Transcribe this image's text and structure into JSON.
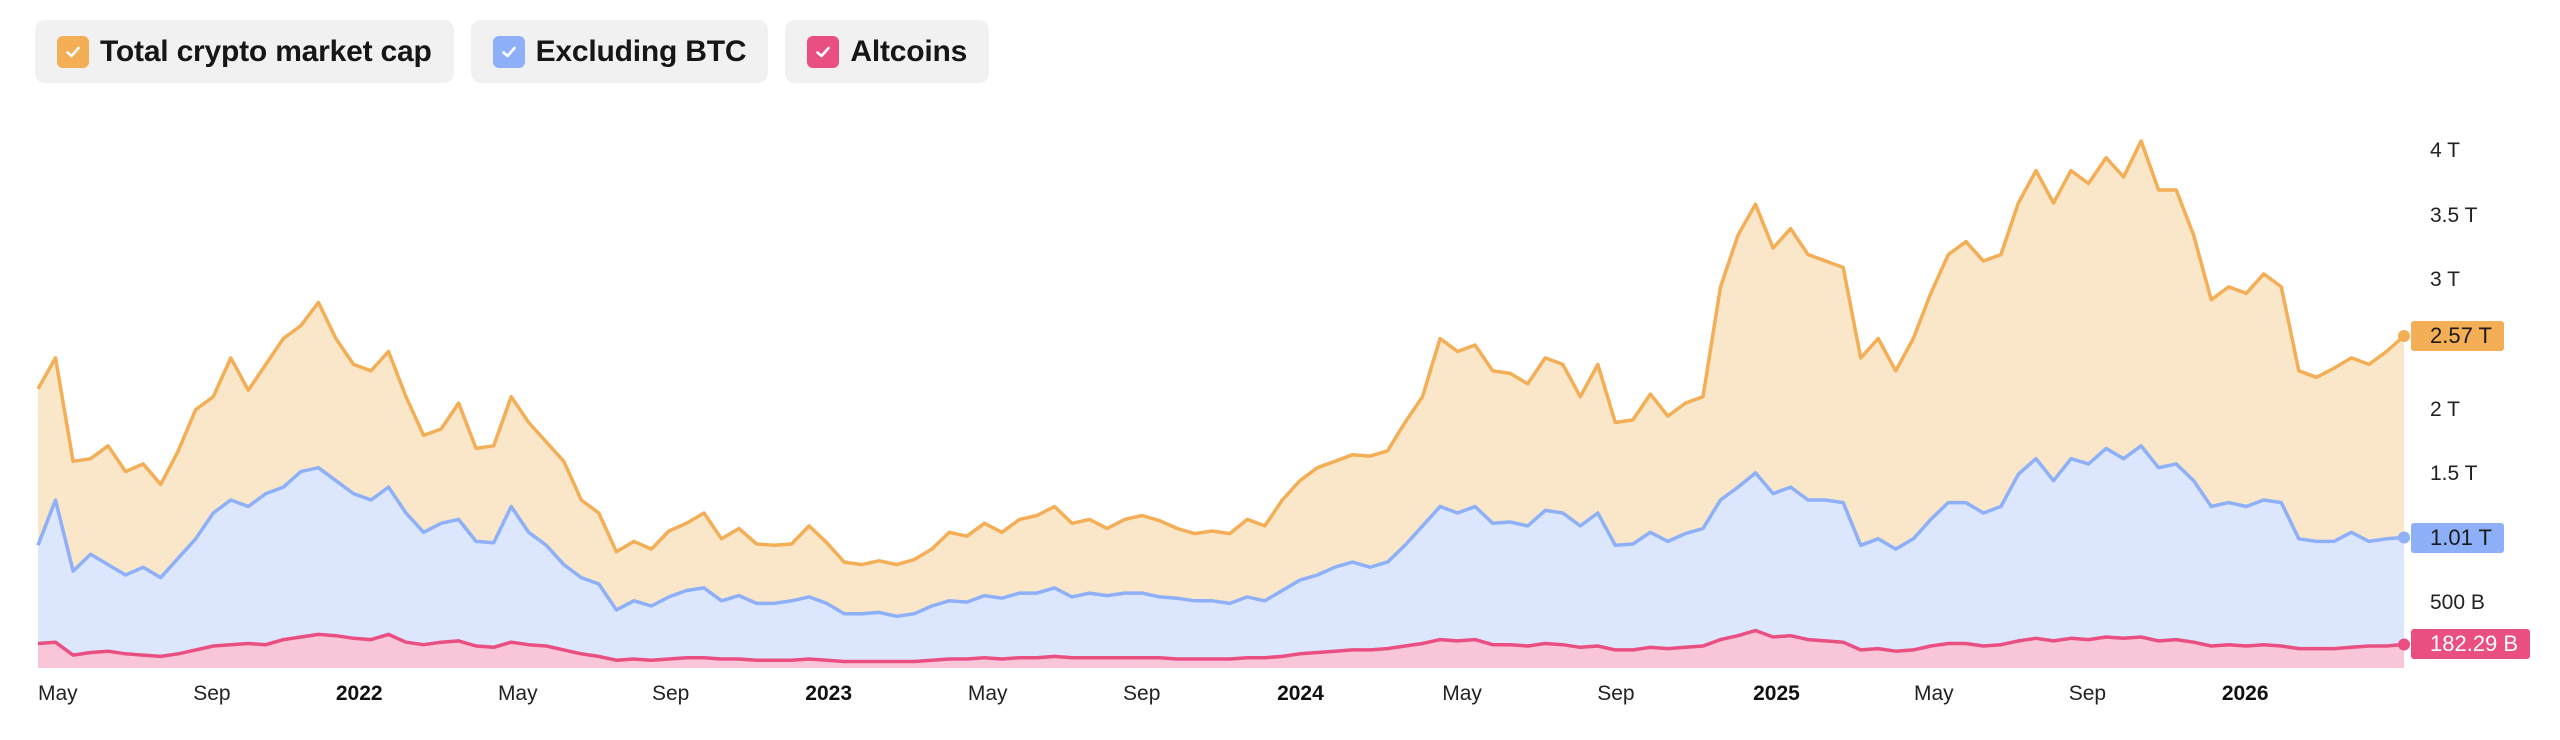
{
  "legend": [
    {
      "label": "Total crypto market cap",
      "color": "#f3ae56",
      "checked": true,
      "icon": "check-icon"
    },
    {
      "label": "Excluding BTC",
      "color": "#8db0f8",
      "checked": true,
      "icon": "check-icon"
    },
    {
      "label": "Altcoins",
      "color": "#ea4f82",
      "checked": true,
      "icon": "check-icon"
    }
  ],
  "y_axis": {
    "ticks": [
      {
        "label": "4 T",
        "value": 4.0
      },
      {
        "label": "3.5 T",
        "value": 3.5
      },
      {
        "label": "3 T",
        "value": 3.0
      },
      {
        "label": "2 T",
        "value": 2.0
      },
      {
        "label": "1.5 T",
        "value": 1.5
      },
      {
        "label": "500 B",
        "value": 0.5
      }
    ]
  },
  "x_axis": {
    "ticks": [
      {
        "label": "May",
        "pos": 0.0,
        "bold": false
      },
      {
        "label": "Sep",
        "pos": 0.0656,
        "bold": false
      },
      {
        "label": "2022",
        "pos": 0.1259,
        "bold": true
      },
      {
        "label": "May",
        "pos": 0.1944,
        "bold": false
      },
      {
        "label": "Sep",
        "pos": 0.2595,
        "bold": false
      },
      {
        "label": "2023",
        "pos": 0.3243,
        "bold": true
      },
      {
        "label": "May",
        "pos": 0.393,
        "bold": false
      },
      {
        "label": "Sep",
        "pos": 0.4586,
        "bold": false
      },
      {
        "label": "2024",
        "pos": 0.5237,
        "bold": true
      },
      {
        "label": "May",
        "pos": 0.5935,
        "bold": false
      },
      {
        "label": "Sep",
        "pos": 0.659,
        "bold": false
      },
      {
        "label": "2025",
        "pos": 0.7249,
        "bold": true
      },
      {
        "label": "May",
        "pos": 0.7929,
        "bold": false
      },
      {
        "label": "Sep",
        "pos": 0.8583,
        "bold": false
      },
      {
        "label": "2026",
        "pos": 0.923,
        "bold": true
      }
    ]
  },
  "current_values": {
    "total": {
      "label": "2.57 T",
      "value": 2.57,
      "bg": "#f3ae56",
      "fg": "#1a1a1a"
    },
    "excluding_btc": {
      "label": "1.01 T",
      "value": 1.01,
      "bg": "#8db0f8",
      "fg": "#1a1a1a"
    },
    "altcoins": {
      "label": "182.29 B",
      "value": 0.18229,
      "bg": "#ea4f82",
      "fg": "#ffffff"
    }
  },
  "chart_data": {
    "type": "area",
    "title": "",
    "xlabel": "",
    "ylabel": "",
    "x_range": [
      "May 2021",
      "May 2026"
    ],
    "ylim": [
      0,
      4.2
    ],
    "y_unit": "T (trillion USD)",
    "grid": false,
    "legend_position": "top-left",
    "y_tick_labels": [
      "500 B",
      "1.5 T",
      "2 T",
      "3 T",
      "3.5 T",
      "4 T"
    ],
    "x_tick_labels": [
      "May",
      "Sep",
      "2022",
      "May",
      "Sep",
      "2023",
      "May",
      "Sep",
      "2024",
      "May",
      "Sep",
      "2025",
      "May",
      "Sep",
      "2026"
    ],
    "sampling": "approx. biweekly, May 2021 - May 2026",
    "series": [
      {
        "name": "Total crypto market cap",
        "color": "#f3ae56",
        "fill": "#fae6c9",
        "last_value_label": "2.57 T",
        "values": [
          2.16,
          2.4,
          1.6,
          1.62,
          1.72,
          1.52,
          1.58,
          1.42,
          1.68,
          2.0,
          2.1,
          2.4,
          2.15,
          2.35,
          2.55,
          2.65,
          2.83,
          2.55,
          2.35,
          2.3,
          2.45,
          2.1,
          1.8,
          1.85,
          2.05,
          1.7,
          1.72,
          2.1,
          1.9,
          1.75,
          1.6,
          1.3,
          1.2,
          0.9,
          0.98,
          0.92,
          1.06,
          1.12,
          1.2,
          1.0,
          1.08,
          0.96,
          0.95,
          0.96,
          1.1,
          0.97,
          0.82,
          0.8,
          0.83,
          0.8,
          0.84,
          0.92,
          1.05,
          1.02,
          1.12,
          1.05,
          1.15,
          1.18,
          1.25,
          1.12,
          1.15,
          1.08,
          1.15,
          1.18,
          1.14,
          1.08,
          1.04,
          1.06,
          1.04,
          1.15,
          1.1,
          1.3,
          1.45,
          1.55,
          1.6,
          1.65,
          1.64,
          1.68,
          1.9,
          2.1,
          2.55,
          2.45,
          2.5,
          2.3,
          2.28,
          2.2,
          2.4,
          2.35,
          2.1,
          2.35,
          1.9,
          1.92,
          2.12,
          1.95,
          2.05,
          2.1,
          2.95,
          3.35,
          3.59,
          3.25,
          3.4,
          3.2,
          3.15,
          3.1,
          2.4,
          2.55,
          2.3,
          2.55,
          2.9,
          3.2,
          3.3,
          3.15,
          3.2,
          3.6,
          3.85,
          3.6,
          3.85,
          3.75,
          3.95,
          3.8,
          4.08,
          3.7,
          3.7,
          3.35,
          2.85,
          2.95,
          2.9,
          3.05,
          2.95,
          2.3,
          2.25,
          2.32,
          2.4,
          2.35,
          2.45,
          2.57
        ]
      },
      {
        "name": "Excluding BTC",
        "color": "#8db0f8",
        "fill": "#dce6fd",
        "last_value_label": "1.01 T",
        "values": [
          0.95,
          1.3,
          0.75,
          0.88,
          0.8,
          0.72,
          0.78,
          0.7,
          0.85,
          1.0,
          1.2,
          1.3,
          1.25,
          1.35,
          1.4,
          1.52,
          1.55,
          1.45,
          1.35,
          1.3,
          1.4,
          1.2,
          1.05,
          1.12,
          1.15,
          0.98,
          0.97,
          1.25,
          1.05,
          0.95,
          0.8,
          0.7,
          0.65,
          0.45,
          0.52,
          0.48,
          0.55,
          0.6,
          0.62,
          0.52,
          0.56,
          0.5,
          0.5,
          0.52,
          0.55,
          0.5,
          0.42,
          0.42,
          0.43,
          0.4,
          0.42,
          0.48,
          0.52,
          0.51,
          0.56,
          0.54,
          0.58,
          0.58,
          0.62,
          0.55,
          0.58,
          0.56,
          0.58,
          0.58,
          0.55,
          0.54,
          0.52,
          0.52,
          0.5,
          0.55,
          0.52,
          0.6,
          0.68,
          0.72,
          0.78,
          0.82,
          0.78,
          0.82,
          0.95,
          1.1,
          1.25,
          1.2,
          1.25,
          1.12,
          1.13,
          1.1,
          1.22,
          1.2,
          1.1,
          1.2,
          0.95,
          0.96,
          1.05,
          0.98,
          1.04,
          1.08,
          1.3,
          1.4,
          1.51,
          1.35,
          1.4,
          1.3,
          1.3,
          1.28,
          0.95,
          1.0,
          0.92,
          1.0,
          1.15,
          1.28,
          1.28,
          1.2,
          1.25,
          1.5,
          1.62,
          1.45,
          1.62,
          1.58,
          1.7,
          1.62,
          1.72,
          1.55,
          1.58,
          1.45,
          1.25,
          1.28,
          1.25,
          1.3,
          1.28,
          1.0,
          0.98,
          0.98,
          1.05,
          0.98,
          1.0,
          1.01
        ]
      },
      {
        "name": "Altcoins",
        "color": "#ea4f82",
        "fill": "#f8c6d8",
        "last_value_label": "182.29 B",
        "values": [
          0.19,
          0.2,
          0.1,
          0.12,
          0.13,
          0.11,
          0.1,
          0.09,
          0.11,
          0.14,
          0.17,
          0.18,
          0.19,
          0.18,
          0.22,
          0.24,
          0.26,
          0.25,
          0.23,
          0.22,
          0.26,
          0.2,
          0.18,
          0.2,
          0.21,
          0.17,
          0.16,
          0.2,
          0.18,
          0.17,
          0.14,
          0.11,
          0.09,
          0.06,
          0.07,
          0.06,
          0.07,
          0.08,
          0.08,
          0.07,
          0.07,
          0.06,
          0.06,
          0.06,
          0.07,
          0.06,
          0.05,
          0.05,
          0.05,
          0.05,
          0.05,
          0.06,
          0.07,
          0.07,
          0.08,
          0.07,
          0.08,
          0.08,
          0.09,
          0.08,
          0.08,
          0.08,
          0.08,
          0.08,
          0.08,
          0.07,
          0.07,
          0.07,
          0.07,
          0.08,
          0.08,
          0.09,
          0.11,
          0.12,
          0.13,
          0.14,
          0.14,
          0.15,
          0.17,
          0.19,
          0.22,
          0.21,
          0.22,
          0.18,
          0.18,
          0.17,
          0.19,
          0.18,
          0.16,
          0.17,
          0.14,
          0.14,
          0.16,
          0.15,
          0.16,
          0.17,
          0.22,
          0.25,
          0.29,
          0.24,
          0.25,
          0.22,
          0.21,
          0.2,
          0.14,
          0.15,
          0.13,
          0.14,
          0.17,
          0.19,
          0.19,
          0.17,
          0.18,
          0.21,
          0.23,
          0.21,
          0.23,
          0.22,
          0.24,
          0.23,
          0.24,
          0.21,
          0.22,
          0.2,
          0.17,
          0.18,
          0.17,
          0.18,
          0.17,
          0.15,
          0.15,
          0.15,
          0.16,
          0.17,
          0.17,
          0.18229
        ]
      }
    ]
  }
}
